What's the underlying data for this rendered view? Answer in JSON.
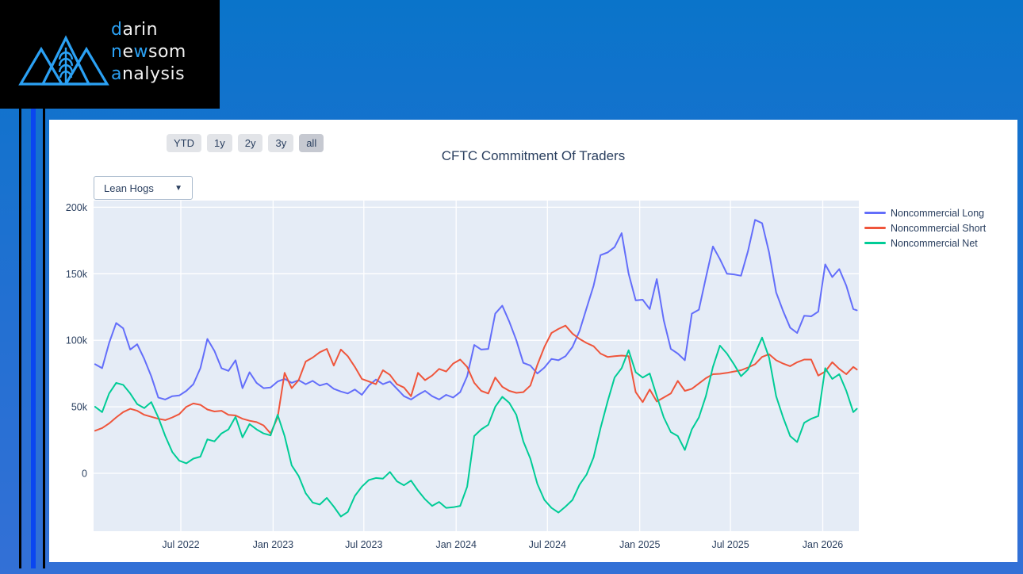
{
  "logo": {
    "line1_accent": "d",
    "line1_rest": "arin",
    "line2_accent1": "n",
    "line2_mid": "e",
    "line2_accent2": "w",
    "line2_rest": "som",
    "line3_accent": "a",
    "line3_rest": "nalysis",
    "accent_color": "#2ba1f4"
  },
  "controls": {
    "range_buttons": [
      {
        "label": "YTD",
        "active": false
      },
      {
        "label": "1y",
        "active": false
      },
      {
        "label": "2y",
        "active": false
      },
      {
        "label": "3y",
        "active": false
      },
      {
        "label": "all",
        "active": true
      }
    ],
    "commodity_dropdown": {
      "value": "Lean Hogs",
      "caret": "▼"
    }
  },
  "chart_data": {
    "type": "line",
    "title": "CFTC Commitment Of Traders",
    "values_unit": "thousand contracts (k)",
    "x_range": [
      "2022-01-08",
      "2026-03-14"
    ],
    "ylim": [
      -43.5,
      205
    ],
    "grid": true,
    "legend_position": "right-top",
    "plot_bg": "#E5ECF6",
    "grid_color": "#FFFFFF",
    "axis_text_color": "#2a3f5f",
    "yticks": {
      "values": [
        0,
        50,
        100,
        150,
        200
      ],
      "labels": [
        "0",
        "50k",
        "100k",
        "150k",
        "200k"
      ]
    },
    "xticks": {
      "dates": [
        "2022-07-01",
        "2023-01-01",
        "2023-07-01",
        "2024-01-01",
        "2024-07-01",
        "2025-01-01",
        "2025-07-01",
        "2026-01-01"
      ],
      "labels": [
        "Jul 2022",
        "Jan 2023",
        "Jul 2023",
        "Jan 2024",
        "Jul 2024",
        "Jan 2025",
        "Jul 2025",
        "Jan 2026"
      ]
    },
    "x": [
      "2022-01-11",
      "2022-01-25",
      "2022-02-08",
      "2022-02-22",
      "2022-03-08",
      "2022-03-22",
      "2022-04-05",
      "2022-04-19",
      "2022-05-03",
      "2022-05-17",
      "2022-05-31",
      "2022-06-14",
      "2022-06-28",
      "2022-07-12",
      "2022-07-26",
      "2022-08-09",
      "2022-08-23",
      "2022-09-06",
      "2022-09-20",
      "2022-10-04",
      "2022-10-18",
      "2022-11-01",
      "2022-11-15",
      "2022-11-29",
      "2022-12-13",
      "2022-12-27",
      "2023-01-10",
      "2023-01-24",
      "2023-02-07",
      "2023-02-21",
      "2023-03-07",
      "2023-03-21",
      "2023-04-04",
      "2023-04-18",
      "2023-05-02",
      "2023-05-16",
      "2023-05-30",
      "2023-06-13",
      "2023-06-27",
      "2023-07-11",
      "2023-07-25",
      "2023-08-08",
      "2023-08-22",
      "2023-09-05",
      "2023-09-19",
      "2023-10-03",
      "2023-10-17",
      "2023-10-31",
      "2023-11-14",
      "2023-11-28",
      "2023-12-12",
      "2023-12-26",
      "2024-01-09",
      "2024-01-23",
      "2024-02-06",
      "2024-02-20",
      "2024-03-05",
      "2024-03-19",
      "2024-04-02",
      "2024-04-16",
      "2024-04-30",
      "2024-05-14",
      "2024-05-28",
      "2024-06-11",
      "2024-06-25",
      "2024-07-09",
      "2024-07-23",
      "2024-08-06",
      "2024-08-20",
      "2024-09-03",
      "2024-09-17",
      "2024-10-01",
      "2024-10-15",
      "2024-10-29",
      "2024-11-12",
      "2024-11-26",
      "2024-12-10",
      "2024-12-24",
      "2025-01-07",
      "2025-01-21",
      "2025-02-04",
      "2025-02-18",
      "2025-03-04",
      "2025-03-18",
      "2025-04-01",
      "2025-04-15",
      "2025-04-29",
      "2025-05-13",
      "2025-05-27",
      "2025-06-10",
      "2025-06-24",
      "2025-07-08",
      "2025-07-22",
      "2025-08-05",
      "2025-08-19",
      "2025-09-02",
      "2025-09-16",
      "2025-09-30",
      "2025-10-14",
      "2025-10-28",
      "2025-11-11",
      "2025-11-25",
      "2025-12-09",
      "2025-12-23",
      "2026-01-06",
      "2026-01-20",
      "2026-02-03",
      "2026-02-17",
      "2026-03-03",
      "2026-03-10"
    ],
    "series": [
      {
        "name": "Noncommercial Long",
        "color": "#636EFA",
        "values": [
          82,
          79,
          98,
          113,
          109,
          93,
          97,
          86,
          73,
          57,
          55.5,
          58,
          58.5,
          62,
          67,
          79,
          101,
          92,
          79,
          77,
          85,
          64,
          76,
          68,
          64,
          64.5,
          69,
          71,
          68,
          70,
          67,
          69.5,
          66,
          67.5,
          63.5,
          61.5,
          60,
          63,
          59,
          66,
          70.5,
          67,
          69,
          63.5,
          58,
          55.5,
          59,
          62,
          58,
          55.5,
          59,
          57,
          61,
          73,
          96.5,
          93,
          93.5,
          120,
          126,
          114,
          100,
          83,
          81,
          75,
          79.5,
          86,
          85,
          88,
          95,
          107,
          124,
          141,
          164,
          166,
          170,
          180.5,
          150,
          130,
          130.5,
          123.5,
          146,
          115,
          93.5,
          90,
          85,
          120,
          123,
          147,
          170.5,
          161,
          150,
          149.5,
          148.5,
          167,
          190.5,
          188,
          166,
          136,
          122,
          109.5,
          105.5,
          118.5,
          118,
          121.5,
          157,
          147.5,
          153.5,
          141,
          123.5,
          122.5
        ]
      },
      {
        "name": "Noncommercial Short",
        "color": "#EF553B",
        "values": [
          32,
          34,
          37.5,
          42,
          46,
          48.5,
          47,
          44,
          42.5,
          41,
          40,
          42,
          44.5,
          50,
          52.5,
          51.5,
          48,
          46.5,
          47,
          44,
          43.5,
          41,
          39.5,
          38.5,
          36,
          30,
          42,
          75.5,
          64,
          70,
          84,
          87,
          91,
          93.5,
          81,
          93,
          88,
          80,
          71,
          69,
          67,
          77.5,
          74,
          67,
          64.5,
          58,
          75.5,
          70,
          73.5,
          78.5,
          76.5,
          82.5,
          85.5,
          80,
          68,
          62,
          60,
          72,
          65,
          62,
          60.5,
          61,
          66,
          81.5,
          95,
          105.5,
          108.5,
          111,
          105,
          101,
          98,
          95.5,
          90,
          87.5,
          88,
          88.5,
          88,
          61,
          53.5,
          63,
          54,
          57,
          60,
          69.5,
          62,
          63.5,
          67.5,
          71.5,
          74.5,
          74.8,
          75.5,
          76.5,
          77.5,
          79.5,
          82,
          87.5,
          89.5,
          85,
          82.5,
          80.5,
          83.5,
          85.5,
          85.5,
          73.5,
          76.5,
          83.5,
          78.5,
          74.5,
          80,
          78
        ]
      },
      {
        "name": "Noncommercial Net",
        "color": "#00CC96",
        "values": [
          50,
          46,
          60,
          68,
          66.5,
          60,
          52,
          49,
          53.5,
          42,
          28,
          16,
          9.5,
          7.5,
          11,
          12.5,
          25.5,
          24,
          30,
          33,
          42.5,
          27,
          37,
          33,
          30,
          28.5,
          44,
          28,
          6,
          -2,
          -15,
          -22,
          -23.5,
          -18.5,
          -25,
          -32.5,
          -29,
          -17,
          -10,
          -5,
          -3.5,
          -4,
          1,
          -6,
          -9,
          -5.5,
          -13,
          -19.5,
          -24.5,
          -21.5,
          -26,
          -25.5,
          -24.5,
          -10,
          28,
          33,
          36.5,
          50,
          57.5,
          53,
          44,
          24,
          11,
          -8,
          -20,
          -26,
          -29.5,
          -25,
          -20,
          -8.5,
          -1,
          12,
          34,
          54,
          72,
          79,
          92.5,
          76,
          72,
          75,
          58,
          42,
          31,
          28,
          17.5,
          33,
          42,
          58,
          80,
          96,
          90,
          82,
          73,
          78,
          90,
          102,
          87,
          58,
          42,
          28,
          23.5,
          38,
          41,
          43,
          79,
          71,
          74.5,
          62,
          46,
          48.5
        ]
      }
    ]
  }
}
